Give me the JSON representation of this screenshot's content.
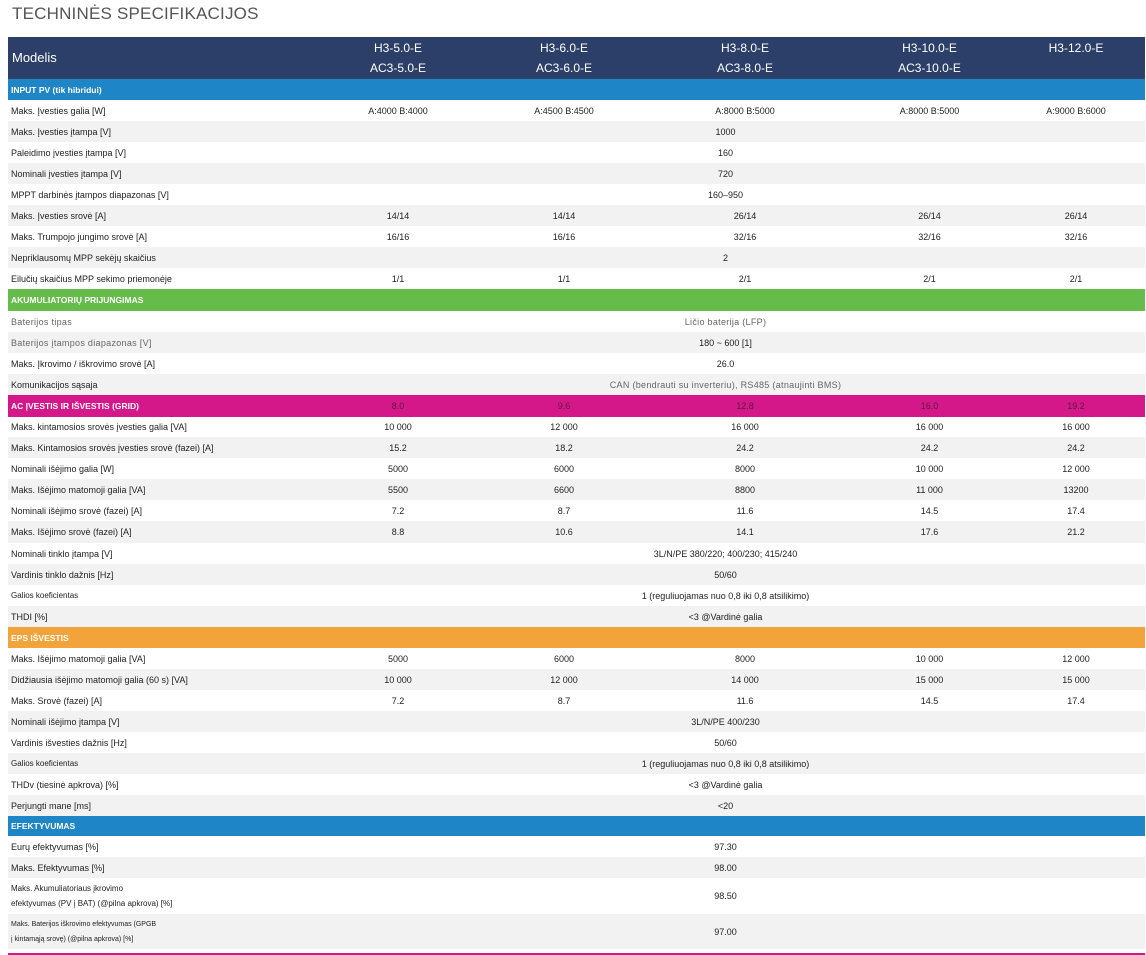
{
  "title": "TECHNINĖS SPECIFIKACIJOS",
  "header": {
    "label": "Modelis",
    "models": [
      {
        "line1": "H3-5.0-E",
        "line2": "AC3-5.0-E"
      },
      {
        "line1": "H3-6.0-E",
        "line2": "AC3-6.0-E"
      },
      {
        "line1": "H3-8.0-E",
        "line2": "AC3-8.0-E"
      },
      {
        "line1": "H3-10.0-E",
        "line2": "AC3-10.0-E"
      },
      {
        "line1": "H3-12.0-E",
        "line2": ""
      }
    ]
  },
  "sections": {
    "pv": {
      "title": "INPUT PV (tik hibridui)",
      "rows": [
        {
          "label": "Maks. Įvesties galia [W]",
          "values": [
            "A:4000 B:4000",
            "A:4500 B:4500",
            "A:8000 B:5000",
            "A:8000 B:5000",
            "A:9000 B:6000"
          ]
        },
        {
          "label": "Maks. Įvesties įtampa [V]",
          "span": "1000"
        },
        {
          "label": "Paleidimo įvesties įtampa [V]",
          "span": "160"
        },
        {
          "label": "Nominali įvesties įtampa [V]",
          "span": "720"
        },
        {
          "label": "MPPT darbinės įtampos diapazonas [V]",
          "span": "160–950"
        },
        {
          "label": "Maks. Įvesties srovė [A]",
          "values": [
            "14/14",
            "14/14",
            "26/14",
            "26/14",
            "26/14"
          ]
        },
        {
          "label": "Maks. Trumpojo jungimo srovė [A]",
          "values": [
            "16/16",
            "16/16",
            "32/16",
            "32/16",
            "32/16"
          ]
        },
        {
          "label": "Nepriklausomų MPP sekėjų skaičius",
          "span": "2"
        },
        {
          "label": "Eilučių skaičius MPP sekimo priemonėje",
          "values": [
            "1/1",
            "1/1",
            "2/1",
            "2/1",
            "2/1"
          ]
        }
      ]
    },
    "battery": {
      "title": "AKUMULIATORIŲ PRIJUNGIMAS",
      "rows": [
        {
          "label": "Baterijos  tipas",
          "span": "Ličio baterija (LFP)"
        },
        {
          "label": "Baterijos  įtampos  diapazonas  [V]",
          "span": "180 ~ 600 [1]"
        },
        {
          "label": "Maks. Įkrovimo / iškrovimo srovė [A]",
          "span": "26.0"
        },
        {
          "label": "Komunikacijos sąsaja",
          "span": "CAN  (bendrauti  su  inverteriu),  RS485  (atnaujinti  BMS)"
        }
      ]
    },
    "ac": {
      "title": "AC ĮVESTIS IR IŠVESTIS (GRID)",
      "header_values": [
        "8.0",
        "9.6",
        "12.8",
        "16.0",
        "19.2"
      ],
      "rows": [
        {
          "label": "Maks. kintamosios srovės įvesties galia [VA]",
          "values": [
            "10 000",
            "12 000",
            "16 000",
            "16 000",
            "16 000"
          ]
        },
        {
          "label": "Maks. Kintamosios srovės įvesties srovė (fazei) [A]",
          "values": [
            "15.2",
            "18.2",
            "24.2",
            "24.2",
            "24.2"
          ]
        },
        {
          "label": "Nominali išėjimo galia [W]",
          "values": [
            "5000",
            "6000",
            "8000",
            "10 000",
            "12 000"
          ]
        },
        {
          "label": "Maks. Išėjimo matomoji galia [VA]",
          "values": [
            "5500",
            "6600",
            "8800",
            "11 000",
            "13200"
          ]
        },
        {
          "label": "Nominali išėjimo srovė (fazei) [A]",
          "values": [
            "7.2",
            "8.7",
            "11.6",
            "14.5",
            "17.4"
          ]
        },
        {
          "label": "Maks. Išėjimo srovė (fazei) [A]",
          "values": [
            "8.8",
            "10.6",
            "14.1",
            "17.6",
            "21.2"
          ]
        },
        {
          "label": "Nominali tinklo įtampa [V]",
          "span": "3L/N/PE 380/220; 400/230; 415/240"
        },
        {
          "label": "Vardinis tinklo dažnis [Hz]",
          "span": "50/60"
        },
        {
          "label": "Galios koeficientas",
          "span": "1 (reguliuojamas nuo 0,8 iki 0,8 atsilikimo)"
        },
        {
          "label": "THDI [%]",
          "span": "<3 @Vardinė galia"
        }
      ]
    },
    "eps": {
      "title": "EPS IŠVESTIS",
      "rows": [
        {
          "label": "Maks. Išėjimo matomoji galia [VA]",
          "values": [
            "5000",
            "6000",
            "8000",
            "10 000",
            "12 000"
          ]
        },
        {
          "label": "Didžiausia išėjimo matomoji galia (60 s) [VA]",
          "values": [
            "10 000",
            "12 000",
            "14 000",
            "15 000",
            "15 000"
          ]
        },
        {
          "label": "Maks. Srovė (fazei) [A]",
          "values": [
            "7.2",
            "8.7",
            "11.6",
            "14.5",
            "17.4"
          ]
        },
        {
          "label": "Nominali išėjimo įtampa [V]",
          "span": "3L/N/PE 400/230"
        },
        {
          "label": "Vardinis išvesties dažnis [Hz]",
          "span": "50/60"
        },
        {
          "label": "Galios koeficientas",
          "span": "1 (reguliuojamas nuo 0,8 iki 0,8 atsilikimo)"
        },
        {
          "label": "THDv (tiesinė apkrova) [%]",
          "span": "<3 @Vardinė galia"
        },
        {
          "label": "Perjungti mane [ms]",
          "span": "<20"
        }
      ]
    },
    "eff": {
      "title": "EFEKTYVUMAS",
      "rows": [
        {
          "label": "Eurų efektyvumas [%]",
          "span": "97.30"
        },
        {
          "label": "Maks. Efektyvumas [%]",
          "span": "98.00"
        },
        {
          "label_l1": "Maks. Akumuliatoriaus įkrovimo",
          "label_l2": "efektyvumas (PV į BAT) (@pilna apkrova) [%]",
          "span": "98.50"
        },
        {
          "label_l1": "Maks. Baterijos iškrovimo efektyvumas (GPGB",
          "label_l2": "į kintamąją srovę) (@pilna apkrova) [%]",
          "span": "97.00"
        }
      ]
    }
  },
  "colors": {
    "header": "#2b3f69",
    "pv": "#1e85c7",
    "battery": "#65bc4a",
    "ac": "#d4188a",
    "eps": "#f2a33a",
    "efficiency": "#1e85c7"
  }
}
